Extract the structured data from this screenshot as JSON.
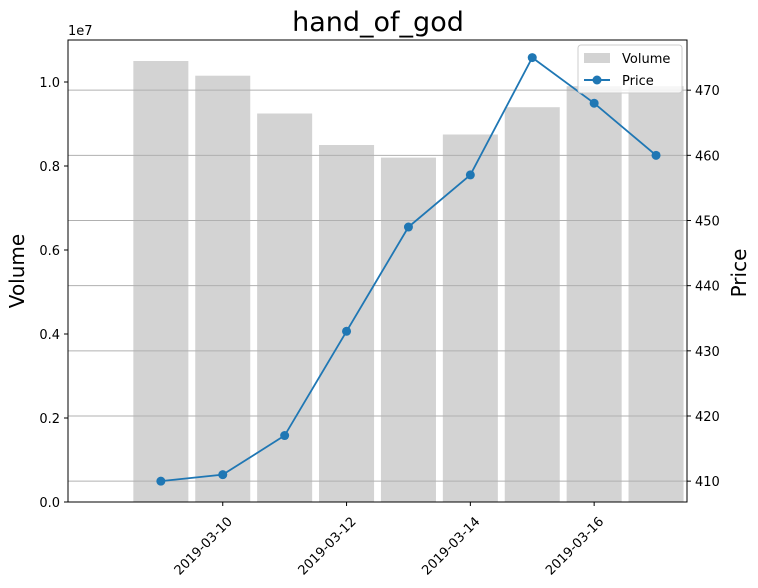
{
  "chart_data": {
    "type": "bar+line",
    "title": "hand_of_god",
    "x": [
      "2019-03-09",
      "2019-03-10",
      "2019-03-11",
      "2019-03-12",
      "2019-03-13",
      "2019-03-14",
      "2019-03-15",
      "2019-03-16",
      "2019-03-17"
    ],
    "x_ticks": [
      "2019-03-10",
      "2019-03-12",
      "2019-03-14",
      "2019-03-16"
    ],
    "series": [
      {
        "name": "Volume",
        "type": "bar",
        "axis": "left",
        "color": "#d3d3d3",
        "values": [
          10500000,
          10150000,
          9250000,
          8500000,
          8200000,
          8750000,
          9400000,
          9900000,
          9900000
        ]
      },
      {
        "name": "Price",
        "type": "line",
        "axis": "right",
        "color": "#1f77b4",
        "values": [
          410,
          411,
          417,
          433,
          449,
          457,
          475,
          468,
          460
        ]
      }
    ],
    "y_left": {
      "label": "Volume",
      "range": [
        0,
        11000000
      ],
      "ticks": [
        0,
        2000000,
        4000000,
        6000000,
        8000000,
        10000000
      ],
      "tick_labels": [
        "0.0",
        "0.2",
        "0.4",
        "0.6",
        "0.8",
        "1.0"
      ],
      "offset_label": "1e7"
    },
    "y_right": {
      "label": "Price",
      "range": [
        406.8,
        477.7
      ],
      "ticks": [
        410,
        420,
        430,
        440,
        450,
        460,
        470
      ],
      "tick_labels": [
        "410",
        "420",
        "430",
        "440",
        "450",
        "460",
        "470"
      ]
    },
    "x_range": [
      "2019-03-08T00:00",
      "2019-03-17T00:00"
    ],
    "grid": "horizontal at right-axis ticks",
    "legend_placement": "top-right"
  }
}
